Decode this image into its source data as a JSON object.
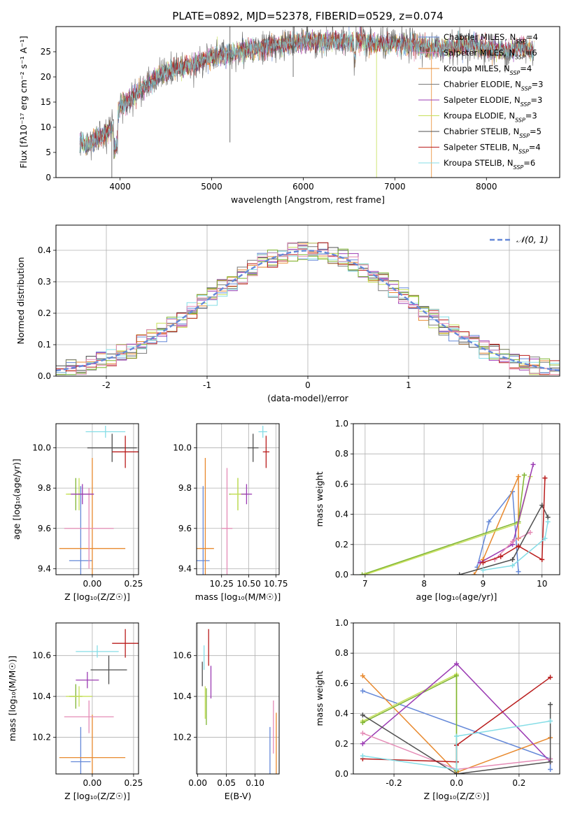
{
  "figure_title": "PLATE=0892, MJD=52378, FIBERID=0529, z=0.074",
  "colors": [
    "#6488d8",
    "#e8892e",
    "#4f4f4f",
    "#9b3bb3",
    "#c7e05a",
    "#7a7a7a",
    "#b91c1c",
    "#85dde6",
    "#7fb531",
    "#e58bb6"
  ],
  "chart_data": [
    {
      "id": "spectrum",
      "type": "line",
      "title": "PLATE=0892, MJD=52378, FIBERID=0529, z=0.074",
      "xlabel": "wavelength [Angstrom, rest frame]",
      "ylabel": "Flux [fλ10⁻¹⁷ erg cm⁻² s⁻¹ A⁻¹]",
      "xlim": [
        3300,
        8800
      ],
      "ylim": [
        0,
        30
      ],
      "xticks": [
        4000,
        5000,
        6000,
        7000,
        8000
      ],
      "yticks": [
        0,
        5,
        10,
        15,
        20,
        25
      ],
      "grid": false,
      "legend_position": "upper-right",
      "continuum": {
        "x": [
          3550,
          3650,
          3750,
          3850,
          3950,
          4000,
          4100,
          4200,
          4300,
          4400,
          4500,
          4600,
          4800,
          5000,
          5200,
          5400,
          5600,
          5800,
          6000,
          6200,
          6400,
          6600,
          6800,
          7000,
          7200,
          7400,
          7600,
          7800,
          8000,
          8200,
          8400,
          8500
        ],
        "values": [
          7,
          6.5,
          8,
          9,
          10,
          14,
          15.5,
          17,
          18.5,
          20,
          21,
          21.5,
          22.5,
          24,
          24.5,
          25.5,
          26,
          26.5,
          27,
          27,
          27,
          27,
          26.5,
          26.5,
          26.5,
          25.5,
          26,
          26.5,
          25.5,
          25,
          26,
          25
        ]
      },
      "series": [
        {
          "legend": "Chabrier MILES, N",
          "sub": "SSP",
          "suffix": "=4",
          "color": "#6488d8"
        },
        {
          "legend": "Salpeter MILES, N",
          "sub": "SSP",
          "suffix": "=6",
          "color": "#e58bb6"
        },
        {
          "legend": "Kroupa MILES, N",
          "sub": "SSP",
          "suffix": "=4",
          "color": "#e8892e"
        },
        {
          "legend": "Chabrier ELODIE, N",
          "sub": "SSP",
          "suffix": "=3",
          "color": "#7a7a7a"
        },
        {
          "legend": "Salpeter ELODIE, N",
          "sub": "SSP",
          "suffix": "=3",
          "color": "#9b3bb3"
        },
        {
          "legend": "Kroupa ELODIE, N",
          "sub": "SSP",
          "suffix": "=3",
          "color": "#c7e05a"
        },
        {
          "legend": "Chabrier STELIB, N",
          "sub": "SSP",
          "suffix": "=5",
          "color": "#4f4f4f"
        },
        {
          "legend": "Salpeter STELIB, N",
          "sub": "SSP",
          "suffix": "=4",
          "color": "#b91c1c"
        },
        {
          "legend": "Kroupa STELIB, N",
          "sub": "SSP",
          "suffix": "=6",
          "color": "#85dde6"
        }
      ]
    },
    {
      "id": "residual-hist",
      "type": "histogram",
      "xlabel": "(data-model)/error",
      "ylabel": "Normed distribution",
      "xlim": [
        -2.5,
        2.5
      ],
      "ylim": [
        0,
        0.48
      ],
      "xticks": [
        -2,
        -1,
        0,
        1,
        2
      ],
      "yticks": [
        0.0,
        0.1,
        0.2,
        0.3,
        0.4
      ],
      "grid": true,
      "legend_position": "upper-right",
      "legend": "𝒩(0, 1)",
      "bin_width": 0.1,
      "reference_curve": "gaussian mean 0 sigma 1"
    },
    {
      "id": "age-vs-Z",
      "type": "errorbar",
      "xlabel": "Z [log₁₀(Z/Z☉)]",
      "ylabel": "age  [log₁₀(age/yr)]",
      "xlim": [
        -0.22,
        0.28
      ],
      "ylim": [
        9.37,
        10.12
      ],
      "xticks": [
        0.0,
        0.25
      ],
      "yticks": [
        9.4,
        9.6,
        9.8,
        10.0
      ],
      "grid": true,
      "points": [
        {
          "color": "#6488d8",
          "x": -0.07,
          "y": 9.44,
          "xerr": 0.07,
          "yerr": 0.37
        },
        {
          "color": "#e8892e",
          "x": 0.0,
          "y": 9.5,
          "xerr": 0.2,
          "yerr": 0.45
        },
        {
          "color": "#e58bb6",
          "x": -0.02,
          "y": 9.6,
          "xerr": 0.15,
          "yerr": 0.2
        },
        {
          "color": "#7fb531",
          "x": -0.1,
          "y": 9.77,
          "xerr": 0.05,
          "yerr": 0.08
        },
        {
          "color": "#c7e05a",
          "x": -0.08,
          "y": 9.77,
          "xerr": 0.08,
          "yerr": 0.08
        },
        {
          "color": "#9b3bb3",
          "x": -0.06,
          "y": 9.77,
          "xerr": 0.07,
          "yerr": 0.05
        },
        {
          "color": "#4f4f4f",
          "x": 0.12,
          "y": 10.0,
          "xerr": 0.15,
          "yerr": 0.07
        },
        {
          "color": "#85dde6",
          "x": 0.08,
          "y": 10.08,
          "xerr": 0.12,
          "yerr": 0.03
        },
        {
          "color": "#b91c1c",
          "x": 0.2,
          "y": 9.98,
          "xerr": 0.08,
          "yerr": 0.08
        }
      ]
    },
    {
      "id": "age-vs-mass",
      "type": "errorbar",
      "xlabel": "mass [log₁₀(M/M☉)]",
      "ylabel": "",
      "xlim": [
        10.02,
        10.78
      ],
      "ylim": [
        9.37,
        10.12
      ],
      "xticks": [
        10.25,
        10.5,
        10.75
      ],
      "yticks": [
        9.4,
        9.6,
        9.8,
        10.0
      ],
      "grid": true,
      "points": [
        {
          "color": "#6488d8",
          "x": 10.08,
          "y": 9.44,
          "xerr": 0.06,
          "yerr": 0.37
        },
        {
          "color": "#e8892e",
          "x": 10.1,
          "y": 9.5,
          "xerr": 0.08,
          "yerr": 0.45
        },
        {
          "color": "#e58bb6",
          "x": 10.3,
          "y": 9.6,
          "xerr": 0.05,
          "yerr": 0.3
        },
        {
          "color": "#7fb531",
          "x": 10.4,
          "y": 9.77,
          "xerr": 0.08,
          "yerr": 0.08
        },
        {
          "color": "#c7e05a",
          "x": 10.4,
          "y": 9.77,
          "xerr": 0.07,
          "yerr": 0.08
        },
        {
          "color": "#9b3bb3",
          "x": 10.48,
          "y": 9.77,
          "xerr": 0.05,
          "yerr": 0.05
        },
        {
          "color": "#4f4f4f",
          "x": 10.54,
          "y": 10.0,
          "xerr": 0.05,
          "yerr": 0.07
        },
        {
          "color": "#85dde6",
          "x": 10.63,
          "y": 10.08,
          "xerr": 0.04,
          "yerr": 0.03
        },
        {
          "color": "#b91c1c",
          "x": 10.66,
          "y": 9.98,
          "xerr": 0.03,
          "yerr": 0.08
        }
      ]
    },
    {
      "id": "weight-vs-age",
      "type": "line",
      "xlabel": "age  [log₁₀(age/yr)]",
      "ylabel": "mass weight",
      "xlim": [
        6.8,
        10.3
      ],
      "ylim": [
        0,
        1
      ],
      "xticks": [
        7,
        8,
        9,
        10
      ],
      "yticks": [
        0.0,
        0.2,
        0.4,
        0.6,
        0.8,
        1.0
      ],
      "grid": true,
      "series": [
        {
          "color": "#6488d8",
          "x": [
            8.9,
            9.1,
            9.5,
            9.6
          ],
          "y": [
            0.05,
            0.35,
            0.55,
            0.02
          ]
        },
        {
          "color": "#e8892e",
          "x": [
            8.85,
            9.0,
            9.6,
            9.6
          ],
          "y": [
            0.0,
            0.1,
            0.65,
            0.24
          ]
        },
        {
          "color": "#7fb531",
          "x": [
            6.95,
            9.6,
            9.7
          ],
          "y": [
            0.0,
            0.35,
            0.66
          ]
        },
        {
          "color": "#c7e05a",
          "x": [
            7.0,
            9.6,
            9.8
          ],
          "y": [
            0.0,
            0.34,
            0.65
          ]
        },
        {
          "color": "#9b3bb3",
          "x": [
            8.95,
            9.5,
            9.85
          ],
          "y": [
            0.08,
            0.2,
            0.73
          ]
        },
        {
          "color": "#e58bb6",
          "x": [
            9.2,
            9.5,
            9.8
          ],
          "y": [
            0.1,
            0.22,
            0.28
          ]
        },
        {
          "color": "#4f4f4f",
          "x": [
            8.6,
            9.5,
            10.0,
            10.1
          ],
          "y": [
            0.0,
            0.1,
            0.46,
            0.38
          ]
        },
        {
          "color": "#b91c1c",
          "x": [
            9.0,
            9.3,
            9.6,
            10.0,
            10.05
          ],
          "y": [
            0.08,
            0.12,
            0.19,
            0.1,
            0.64
          ]
        },
        {
          "color": "#85dde6",
          "x": [
            9.0,
            9.5,
            10.05,
            10.1
          ],
          "y": [
            0.03,
            0.06,
            0.24,
            0.35
          ]
        }
      ]
    },
    {
      "id": "mass-vs-Z",
      "type": "errorbar",
      "xlabel": "Z [log₁₀(Z/Z☉)]",
      "ylabel": "mass [log₁₀(M/M☉)]",
      "xlim": [
        -0.22,
        0.28
      ],
      "ylim": [
        10.02,
        10.76
      ],
      "xticks": [
        0.0,
        0.25
      ],
      "yticks": [
        10.2,
        10.4,
        10.6
      ],
      "grid": true,
      "points": [
        {
          "color": "#6488d8",
          "x": -0.07,
          "y": 10.08,
          "xerr": 0.06,
          "yerr": 0.17
        },
        {
          "color": "#e8892e",
          "x": 0.0,
          "y": 10.1,
          "xerr": 0.2,
          "yerr": 0.21
        },
        {
          "color": "#e58bb6",
          "x": -0.02,
          "y": 10.3,
          "xerr": 0.15,
          "yerr": 0.08
        },
        {
          "color": "#7fb531",
          "x": -0.1,
          "y": 10.4,
          "xerr": 0.04,
          "yerr": 0.06
        },
        {
          "color": "#c7e05a",
          "x": -0.08,
          "y": 10.4,
          "xerr": 0.08,
          "yerr": 0.05
        },
        {
          "color": "#9b3bb3",
          "x": -0.03,
          "y": 10.48,
          "xerr": 0.07,
          "yerr": 0.04
        },
        {
          "color": "#4f4f4f",
          "x": 0.1,
          "y": 10.53,
          "xerr": 0.11,
          "yerr": 0.07
        },
        {
          "color": "#85dde6",
          "x": 0.03,
          "y": 10.62,
          "xerr": 0.13,
          "yerr": 0.03
        },
        {
          "color": "#b91c1c",
          "x": 0.2,
          "y": 10.66,
          "xerr": 0.08,
          "yerr": 0.07
        }
      ]
    },
    {
      "id": "mass-vs-ebv",
      "type": "errorbar",
      "xlabel": "E(B-V)",
      "ylabel": "",
      "xlim": [
        -0.002,
        0.142
      ],
      "ylim": [
        10.02,
        10.76
      ],
      "xticks": [
        0.0,
        0.05,
        0.1
      ],
      "yticks": [
        10.2,
        10.4,
        10.6
      ],
      "grid": true,
      "points": [
        {
          "color": "#6488d8",
          "x": 0.126,
          "y": 10.13,
          "xerr": 0,
          "yerr": 0.12
        },
        {
          "color": "#e8892e",
          "x": 0.137,
          "y": 10.16,
          "xerr": 0,
          "yerr": 0.16
        },
        {
          "color": "#e58bb6",
          "x": 0.132,
          "y": 10.25,
          "xerr": 0,
          "yerr": 0.13
        },
        {
          "color": "#7fb531",
          "x": 0.015,
          "y": 10.35,
          "xerr": 0,
          "yerr": 0.09
        },
        {
          "color": "#c7e05a",
          "x": 0.013,
          "y": 10.37,
          "xerr": 0,
          "yerr": 0.08
        },
        {
          "color": "#9b3bb3",
          "x": 0.023,
          "y": 10.47,
          "xerr": 0,
          "yerr": 0.08
        },
        {
          "color": "#4f4f4f",
          "x": 0.008,
          "y": 10.51,
          "xerr": 0,
          "yerr": 0.06
        },
        {
          "color": "#85dde6",
          "x": 0.011,
          "y": 10.59,
          "xerr": 0,
          "yerr": 0.06
        },
        {
          "color": "#b91c1c",
          "x": 0.019,
          "y": 10.64,
          "xerr": 0,
          "yerr": 0.09
        }
      ]
    },
    {
      "id": "weight-vs-Z",
      "type": "line",
      "xlabel": "Z [log₁₀(Z/Z☉)]",
      "ylabel": "mass weight",
      "xlim": [
        -0.33,
        0.33
      ],
      "ylim": [
        0,
        1
      ],
      "xticks": [
        -0.2,
        0.0,
        0.2
      ],
      "yticks": [
        0.0,
        0.2,
        0.4,
        0.6,
        0.8,
        1.0
      ],
      "grid": true,
      "series": [
        {
          "color": "#6488d8",
          "x": [
            -0.3,
            0.3,
            0.3
          ],
          "y": [
            0.55,
            0.1,
            0.03
          ]
        },
        {
          "color": "#e8892e",
          "x": [
            -0.3,
            0.0,
            0.3
          ],
          "y": [
            0.65,
            0.01,
            0.24
          ]
        },
        {
          "color": "#c7e05a",
          "x": [
            -0.3,
            0.0,
            0.0
          ],
          "y": [
            0.35,
            0.66,
            0.0
          ]
        },
        {
          "color": "#7fb531",
          "x": [
            -0.3,
            0.0,
            0.0
          ],
          "y": [
            0.34,
            0.65,
            0.02
          ]
        },
        {
          "color": "#9b3bb3",
          "x": [
            -0.3,
            0.0,
            0.3
          ],
          "y": [
            0.2,
            0.73,
            0.08
          ]
        },
        {
          "color": "#e58bb6",
          "x": [
            -0.3,
            0.0,
            0.3
          ],
          "y": [
            0.27,
            0.03,
            0.1
          ]
        },
        {
          "color": "#4f4f4f",
          "x": [
            -0.3,
            0.0,
            0.3,
            0.3
          ],
          "y": [
            0.39,
            0.0,
            0.08,
            0.46
          ]
        },
        {
          "color": "#b91c1c",
          "x": [
            -0.3,
            0.0,
            0.0,
            0.3
          ],
          "y": [
            0.1,
            0.08,
            0.19,
            0.64
          ]
        },
        {
          "color": "#85dde6",
          "x": [
            -0.3,
            0.0,
            0.0,
            0.3
          ],
          "y": [
            0.12,
            0.03,
            0.25,
            0.35
          ]
        }
      ]
    }
  ]
}
